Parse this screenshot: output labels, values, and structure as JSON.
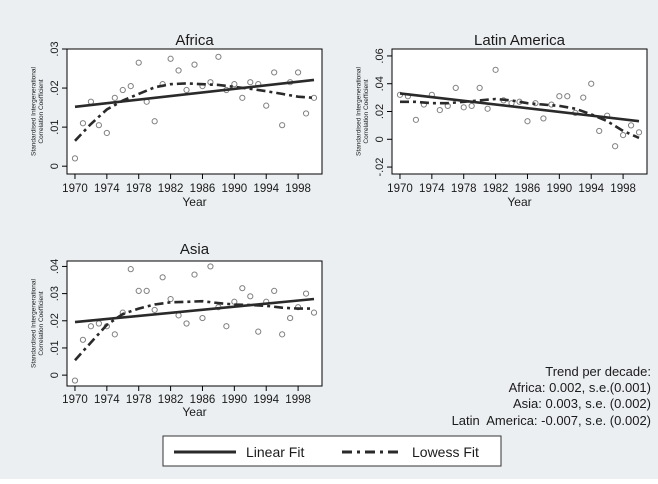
{
  "chart_data": [
    {
      "type": "scatter",
      "title": "Africa",
      "xlabel": "Year",
      "ylabel": "Standardised Intergenerational Correlation Coefficient",
      "xlim": [
        1969,
        2001
      ],
      "ylim": [
        -0.002,
        0.03
      ],
      "x_ticks": [
        1970,
        1974,
        1978,
        1982,
        1986,
        1990,
        1994,
        1998
      ],
      "x_tick_labels": [
        "1970",
        "1974",
        "1978",
        "1982",
        "1986",
        "1990",
        "1994",
        "1998"
      ],
      "y_ticks": [
        0,
        0.01,
        0.02,
        0.03
      ],
      "y_tick_labels": [
        "0",
        ".01",
        ".02",
        ".03"
      ],
      "series": [
        {
          "kind": "points",
          "x": [
            1970,
            1971,
            1972,
            1973,
            1974,
            1975,
            1976,
            1977,
            1978,
            1979,
            1980,
            1981,
            1982,
            1983,
            1984,
            1985,
            1986,
            1987,
            1988,
            1989,
            1990,
            1991,
            1992,
            1993,
            1994,
            1995,
            1996,
            1997,
            1998,
            1999,
            2000
          ],
          "y": [
            0.002,
            0.011,
            0.0165,
            0.0105,
            0.0085,
            0.0175,
            0.0195,
            0.0205,
            0.0265,
            0.0165,
            0.0115,
            0.021,
            0.0275,
            0.0245,
            0.0195,
            0.026,
            0.0205,
            0.0215,
            0.028,
            0.0195,
            0.021,
            0.0175,
            0.0215,
            0.021,
            0.0155,
            0.024,
            0.0105,
            0.0215,
            0.024,
            0.0135,
            0.0175
          ]
        },
        {
          "kind": "linear",
          "x": [
            1970,
            2000
          ],
          "y": [
            0.0152,
            0.0221
          ]
        },
        {
          "kind": "lowess",
          "x": [
            1970,
            1972,
            1974,
            1976,
            1978,
            1980,
            1982,
            1984,
            1986,
            1988,
            1990,
            1992,
            1994,
            1996,
            1998,
            2000
          ],
          "y": [
            0.0065,
            0.0108,
            0.0145,
            0.0168,
            0.0185,
            0.0202,
            0.021,
            0.0212,
            0.021,
            0.0208,
            0.0203,
            0.0198,
            0.0192,
            0.0185,
            0.0178,
            0.0175
          ]
        }
      ]
    },
    {
      "type": "scatter",
      "title": "Latin America",
      "xlabel": "Year",
      "ylabel": "Standardised Intergenerational Correlation Coefficient",
      "xlim": [
        1969,
        2001
      ],
      "ylim": [
        -0.025,
        0.065
      ],
      "x_ticks": [
        1970,
        1974,
        1978,
        1982,
        1986,
        1990,
        1994,
        1998
      ],
      "x_tick_labels": [
        "1970",
        "1974",
        "1978",
        "1982",
        "1986",
        "1990",
        "1994",
        "1998"
      ],
      "y_ticks": [
        -0.02,
        0,
        0.02,
        0.04,
        0.06
      ],
      "y_tick_labels": [
        "-.02",
        "0",
        ".02",
        ".04",
        ".06"
      ],
      "series": [
        {
          "kind": "points",
          "x": [
            1970,
            1971,
            1972,
            1973,
            1974,
            1975,
            1976,
            1977,
            1978,
            1979,
            1980,
            1981,
            1982,
            1983,
            1984,
            1985,
            1986,
            1987,
            1988,
            1989,
            1990,
            1991,
            1992,
            1993,
            1994,
            1995,
            1996,
            1997,
            1998,
            1999,
            2000
          ],
          "y": [
            0.032,
            0.031,
            0.014,
            0.025,
            0.032,
            0.021,
            0.024,
            0.037,
            0.023,
            0.024,
            0.037,
            0.022,
            0.05,
            0.028,
            0.026,
            0.027,
            0.013,
            0.026,
            0.015,
            0.025,
            0.031,
            0.031,
            0.019,
            0.03,
            0.04,
            0.006,
            0.017,
            -0.005,
            0.003,
            0.01,
            0.005
          ]
        },
        {
          "kind": "linear",
          "x": [
            1970,
            2000
          ],
          "y": [
            0.033,
            0.013
          ]
        },
        {
          "kind": "lowess",
          "x": [
            1970,
            1972,
            1974,
            1976,
            1978,
            1980,
            1982,
            1984,
            1986,
            1988,
            1990,
            1992,
            1994,
            1996,
            1998,
            2000
          ],
          "y": [
            0.027,
            0.027,
            0.026,
            0.026,
            0.027,
            0.028,
            0.029,
            0.028,
            0.026,
            0.025,
            0.024,
            0.022,
            0.018,
            0.013,
            0.006,
            0.001
          ]
        }
      ]
    },
    {
      "type": "scatter",
      "title": "Asia",
      "xlabel": "Year",
      "ylabel": "Standardised Intergenerational Correlation Coefficient",
      "xlim": [
        1969,
        2001
      ],
      "ylim": [
        -0.004,
        0.042
      ],
      "x_ticks": [
        1970,
        1974,
        1978,
        1982,
        1986,
        1990,
        1994,
        1998
      ],
      "x_tick_labels": [
        "1970",
        "1974",
        "1978",
        "1982",
        "1986",
        "1990",
        "1994",
        "1998"
      ],
      "y_ticks": [
        0,
        0.01,
        0.02,
        0.03,
        0.04
      ],
      "y_tick_labels": [
        "0",
        ".01",
        ".02",
        ".03",
        ".04"
      ],
      "series": [
        {
          "kind": "points",
          "x": [
            1970,
            1971,
            1972,
            1973,
            1974,
            1975,
            1976,
            1977,
            1978,
            1979,
            1980,
            1981,
            1982,
            1983,
            1984,
            1985,
            1986,
            1987,
            1988,
            1989,
            1990,
            1991,
            1992,
            1993,
            1994,
            1995,
            1996,
            1997,
            1998,
            1999,
            2000
          ],
          "y": [
            -0.002,
            0.013,
            0.018,
            0.019,
            0.018,
            0.015,
            0.023,
            0.039,
            0.031,
            0.031,
            0.024,
            0.036,
            0.028,
            0.022,
            0.019,
            0.037,
            0.021,
            0.04,
            0.025,
            0.018,
            0.027,
            0.032,
            0.029,
            0.016,
            0.027,
            0.031,
            0.015,
            0.021,
            0.025,
            0.03,
            0.023
          ]
        },
        {
          "kind": "linear",
          "x": [
            1970,
            2000
          ],
          "y": [
            0.0195,
            0.028
          ]
        },
        {
          "kind": "lowess",
          "x": [
            1970,
            1972,
            1974,
            1976,
            1978,
            1980,
            1982,
            1984,
            1986,
            1988,
            1990,
            1992,
            1994,
            1996,
            1998,
            2000
          ],
          "y": [
            0.0055,
            0.012,
            0.0185,
            0.0225,
            0.0245,
            0.026,
            0.0268,
            0.027,
            0.0272,
            0.0265,
            0.026,
            0.0258,
            0.0255,
            0.0248,
            0.0245,
            0.0245
          ]
        }
      ]
    }
  ],
  "legend": {
    "linear_label": "Linear Fit",
    "lowess_label": "Lowess Fit"
  },
  "trend_note": {
    "heading": "Trend per decade:",
    "lines": [
      "Africa: 0.002, s.e.(0.001)",
      "Asia: 0.003, s.e. (0.002)",
      "Latin  America: -0.007, s.e. (0.002)"
    ]
  },
  "colors": {
    "background": "#ebeff2",
    "plot_area": "#ffffff",
    "marker": "#808080",
    "line": "#2a2a2a",
    "text": "#1a1a1a"
  }
}
